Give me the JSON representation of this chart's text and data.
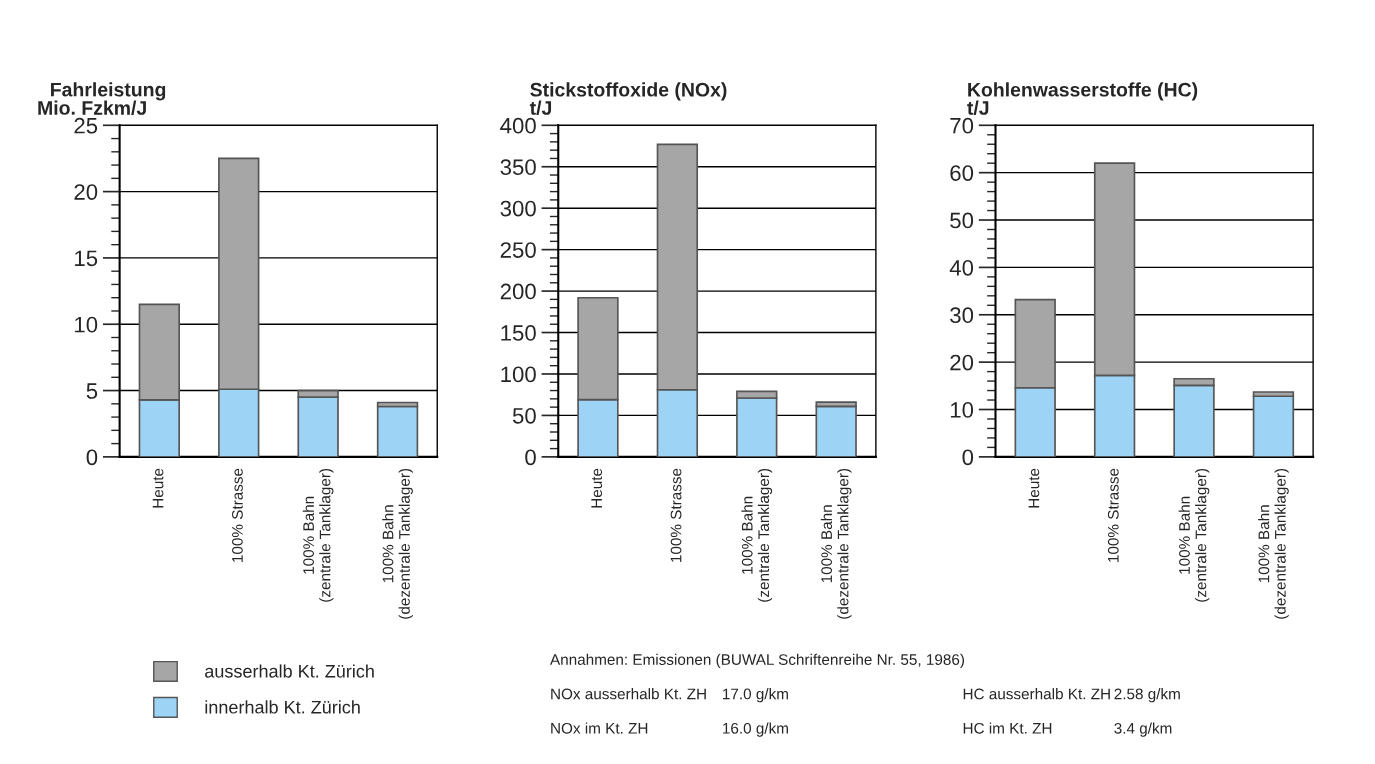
{
  "chart_data": [
    {
      "type": "bar",
      "title": "Fahrleistung",
      "ylabel": "Mio. Fzkm/J",
      "stacked": true,
      "grid": "y",
      "legend": "bottom left",
      "categories": [
        "Heute",
        "100% Strasse",
        "100% Bahn\n(zentrale Tanklager)",
        "100% Bahn\n(dezentrale Tanklager)"
      ],
      "series": [
        {
          "name": "innerhalb Kt. Zürich",
          "color": "#9dd3f5",
          "values": [
            4.3,
            5.1,
            4.5,
            3.8
          ]
        },
        {
          "name": "ausserhalb Kt. Zürich",
          "color": "#a6a6a6",
          "values": [
            7.2,
            17.4,
            0.5,
            0.3
          ]
        }
      ],
      "ylim": [
        0,
        25
      ],
      "yticks": [
        0,
        5,
        10,
        15,
        20,
        25
      ]
    },
    {
      "type": "bar",
      "title": "Stickstoffoxide (NOx)",
      "ylabel": "t/J",
      "stacked": true,
      "grid": "y",
      "categories": [
        "Heute",
        "100% Strasse",
        "100% Bahn\n(zentrale Tanklager)",
        "100% Bahn\n(dezentrale Tanklager)"
      ],
      "series": [
        {
          "color": "#9dd3f5",
          "values": [
            69,
            81,
            71,
            61
          ]
        },
        {
          "color": "#a6a6a6",
          "values": [
            123,
            296,
            8,
            5
          ]
        }
      ],
      "ylim": [
        0,
        400
      ],
      "yticks": [
        0,
        50,
        100,
        150,
        200,
        250,
        300,
        350,
        400
      ],
      "annotations": [
        "Annahmen: Emissionen (BUWAL Schriftenreihe Nr. 55, 1986)",
        "NOx ausserhalb Kt. ZH",
        "17.0 g/km",
        "HC ausserhalb Kt. ZH",
        "2.58 g/km",
        "NOx im Kt. ZH",
        "16.0 g/km",
        "HC im Kt. ZH",
        "3.4 g/km"
      ]
    },
    {
      "type": "bar",
      "title": "Kohlenwasserstoffe (HC)",
      "ylabel": "t/J",
      "stacked": true,
      "grid": "y",
      "categories": [
        "Heute",
        "100% Strasse",
        "100% Bahn\n(zentrale Tanklager)",
        "100% Bahn\n(dezentrale Tanklager)"
      ],
      "series": [
        {
          "color": "#9dd3f5",
          "values": [
            14.6,
            17.2,
            15.1,
            12.8
          ]
        },
        {
          "color": "#a6a6a6",
          "values": [
            18.6,
            44.8,
            1.4,
            0.9
          ]
        }
      ],
      "ylim": [
        0,
        70
      ],
      "yticks": [
        0,
        10,
        20,
        30,
        40,
        50,
        60,
        70
      ]
    }
  ]
}
